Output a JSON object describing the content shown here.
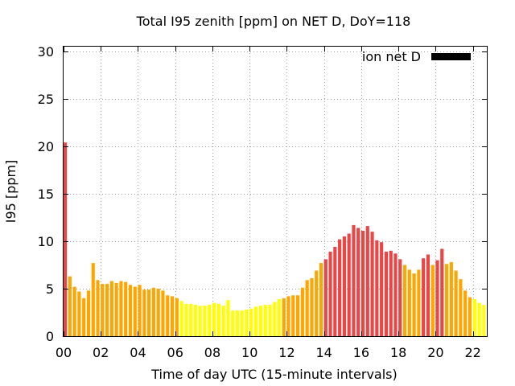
{
  "chart_data": {
    "type": "bar",
    "title": "Total I95 zenith [ppm] on NET D, DoY=118",
    "xlabel": "Time of day UTC (15-minute intervals)",
    "ylabel": "I95 [ppm]",
    "xlim": [
      0,
      22.75
    ],
    "ylim": [
      0,
      30.5
    ],
    "xticks": [
      0,
      2,
      4,
      6,
      8,
      10,
      12,
      14,
      16,
      18,
      20,
      22
    ],
    "xtick_labels": [
      "00",
      "02",
      "04",
      "06",
      "08",
      "10",
      "12",
      "14",
      "16",
      "18",
      "20",
      "22"
    ],
    "yticks": [
      0,
      5,
      10,
      15,
      20,
      25,
      30
    ],
    "ytick_labels": [
      "0",
      "5",
      "10",
      "15",
      "20",
      "25",
      "30"
    ],
    "grid": true,
    "legend": {
      "label": "ion net D",
      "placement": "top-right",
      "color": "#000000"
    },
    "bin_hours": 0.25,
    "series": [
      {
        "name": "ion net D",
        "x_start": 0,
        "values": [
          20.4,
          6.3,
          5.2,
          4.7,
          4.0,
          4.8,
          7.7,
          5.9,
          5.5,
          5.5,
          5.8,
          5.6,
          5.8,
          5.7,
          5.4,
          5.2,
          5.4,
          4.9,
          4.9,
          5.1,
          5.0,
          4.8,
          4.3,
          4.2,
          4.0,
          3.7,
          3.4,
          3.4,
          3.3,
          3.2,
          3.2,
          3.3,
          3.5,
          3.4,
          3.2,
          3.8,
          2.7,
          2.7,
          2.7,
          2.8,
          2.9,
          3.1,
          3.2,
          3.3,
          3.3,
          3.6,
          3.9,
          4.0,
          4.2,
          4.3,
          4.3,
          5.1,
          5.9,
          6.1,
          6.9,
          7.7,
          8.1,
          8.9,
          9.4,
          10.2,
          10.5,
          10.8,
          11.7,
          11.4,
          11.1,
          11.6,
          11.0,
          10.1,
          9.9,
          8.9,
          9.0,
          8.7,
          8.1,
          7.5,
          7.0,
          6.6,
          7.0,
          8.2,
          8.6,
          7.5,
          8.0,
          9.2,
          7.6,
          7.8,
          6.9,
          6.0,
          4.8,
          4.1,
          3.9,
          3.5,
          3.3
        ]
      }
    ],
    "color_scale": [
      {
        "min": 0,
        "max": 4,
        "color": "#ffff00"
      },
      {
        "min": 4,
        "max": 8,
        "color": "#ffa500"
      },
      {
        "min": 8,
        "max": 1000,
        "color": "#ea4646"
      }
    ]
  }
}
